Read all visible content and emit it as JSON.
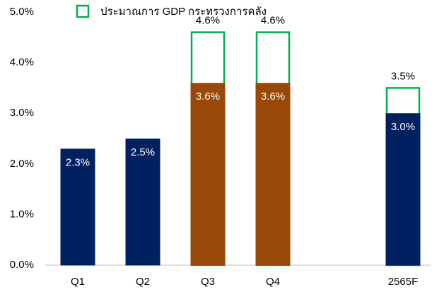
{
  "chart_data": {
    "type": "bar",
    "categories": [
      "Q1",
      "Q2",
      "Q3",
      "Q4",
      null,
      "2565F"
    ],
    "series": [
      {
        "colors": [
          "#002060",
          "#002060",
          "#984807",
          "#984807",
          null,
          "#002060"
        ],
        "values": [
          2.3,
          2.5,
          3.6,
          3.6,
          null,
          3.0
        ],
        "value_labels": [
          "2.3%",
          "2.5%",
          "3.6%",
          "3.6%",
          null,
          "3.0%"
        ]
      },
      {
        "name": "ประมาณการ GDP กระทรวงการคลัง",
        "color": "#00b050",
        "values": [
          null,
          null,
          4.6,
          4.6,
          null,
          3.5
        ],
        "value_labels": [
          null,
          null,
          "4.6%",
          "4.6%",
          null,
          "3.5%"
        ]
      }
    ],
    "ylim": [
      0,
      5
    ],
    "yticks": [
      {
        "value": 0,
        "label": "0.0%"
      },
      {
        "value": 1,
        "label": "1.0%"
      },
      {
        "value": 2,
        "label": "2.0%"
      },
      {
        "value": 3,
        "label": "3.0%"
      },
      {
        "value": 4,
        "label": "4.0%"
      },
      {
        "value": 5,
        "label": "5.0%"
      }
    ],
    "legend": "top"
  }
}
